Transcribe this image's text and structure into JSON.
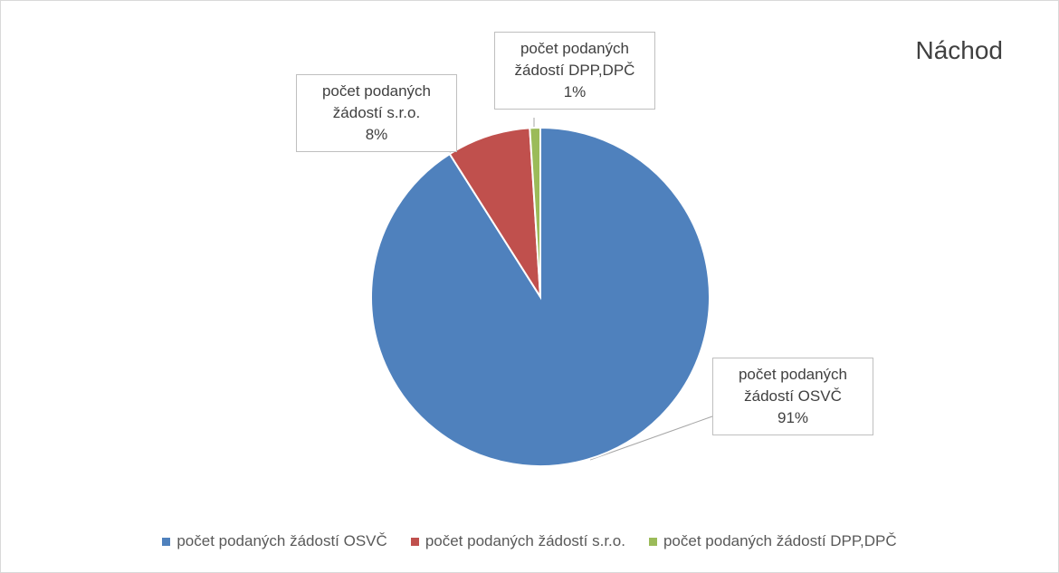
{
  "chart_data": {
    "type": "pie",
    "title": "Náchod",
    "categories": [
      "počet podaných žádostí OSVČ",
      "počet podaných žádostí s.r.o.",
      "počet podaných žádostí DPP,DPČ"
    ],
    "values": [
      91,
      8,
      1
    ],
    "value_labels": [
      "91%",
      "8%",
      "1%"
    ],
    "colors": [
      "#4f81bd",
      "#c0504d",
      "#9bbb59"
    ],
    "legend": "bottom"
  }
}
